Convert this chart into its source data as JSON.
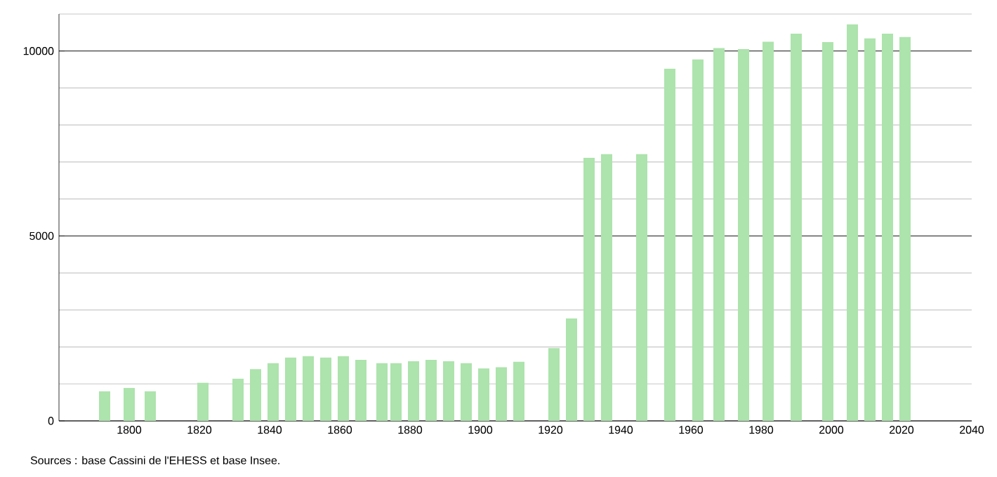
{
  "chart_data": {
    "type": "bar",
    "color": "#ade3ad",
    "x": [
      1793,
      1800,
      1806,
      1821,
      1831,
      1836,
      1841,
      1846,
      1851,
      1856,
      1861,
      1866,
      1872,
      1876,
      1881,
      1886,
      1891,
      1896,
      1901,
      1906,
      1911,
      1921,
      1926,
      1931,
      1936,
      1946,
      1954,
      1962,
      1968,
      1975,
      1982,
      1990,
      1999,
      2006,
      2011,
      2016,
      2021
    ],
    "values": [
      800,
      890,
      800,
      1030,
      1140,
      1400,
      1560,
      1710,
      1750,
      1710,
      1750,
      1650,
      1560,
      1560,
      1610,
      1650,
      1610,
      1560,
      1420,
      1450,
      1600,
      1970,
      2770,
      7110,
      7210,
      7210,
      9520,
      9770,
      10080,
      10050,
      10250,
      10470,
      10240,
      10720,
      10340,
      10470,
      10380
    ],
    "xlim": [
      1780,
      2040
    ],
    "xticks": [
      1800,
      1820,
      1840,
      1860,
      1880,
      1900,
      1920,
      1940,
      1960,
      1980,
      2000,
      2020,
      2040
    ],
    "ylim": [
      0,
      11000
    ],
    "yticks": [
      0,
      {
        "value": 1000,
        "label": null
      },
      {
        "value": 2000,
        "label": null
      },
      {
        "value": 3000,
        "label": null
      },
      {
        "value": 4000,
        "label": null
      },
      5000,
      {
        "value": 6000,
        "label": null
      },
      {
        "value": 7000,
        "label": null
      },
      {
        "value": 8000,
        "label": null
      },
      {
        "value": 9000,
        "label": null
      },
      10000,
      {
        "value": 11000,
        "label": null
      }
    ],
    "grid": "y",
    "annotations": [
      "Sources : base Cassini de l'EHESS et base Insee."
    ]
  }
}
